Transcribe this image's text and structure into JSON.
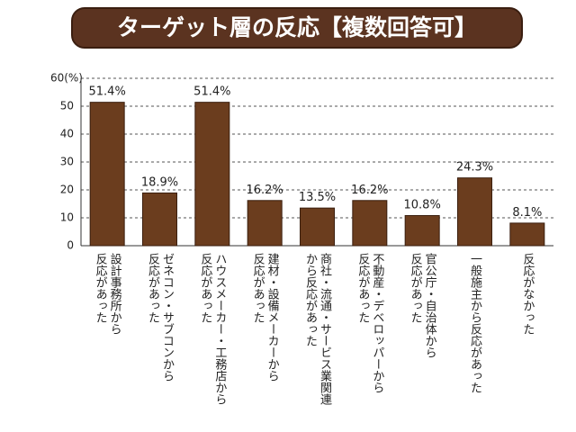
{
  "chart_data": {
    "type": "bar",
    "title": "ターゲット層の反応【複数回答可】",
    "categories": [
      [
        "設計事務所から",
        "反応があった"
      ],
      [
        "ゼネコン・サブコンから",
        "反応があった"
      ],
      [
        "ハウスメーカー・工務店から",
        "反応があった"
      ],
      [
        "建材・設備メーカーから",
        "反応があった"
      ],
      [
        "商社・流通・サービス業関連",
        "から反応があった"
      ],
      [
        "不動産・デベロッパーから",
        "反応があった"
      ],
      [
        "官公庁・自治体から",
        "反応があった"
      ],
      [
        "一般施主から反応があった"
      ],
      [
        "反応がなかった"
      ]
    ],
    "values": [
      51.4,
      18.9,
      51.4,
      16.2,
      13.5,
      16.2,
      10.8,
      24.3,
      8.1
    ],
    "value_labels": [
      "51.4%",
      "18.9%",
      "51.4%",
      "16.2%",
      "13.5%",
      "16.2%",
      "10.8%",
      "24.3%",
      "8.1%"
    ],
    "color": "#6b3d1e",
    "ylim": [
      0,
      60
    ],
    "yticks": [
      0,
      10,
      20,
      30,
      40,
      50,
      {
        "value": 60,
        "label": "60(%)"
      }
    ],
    "grid": true
  }
}
